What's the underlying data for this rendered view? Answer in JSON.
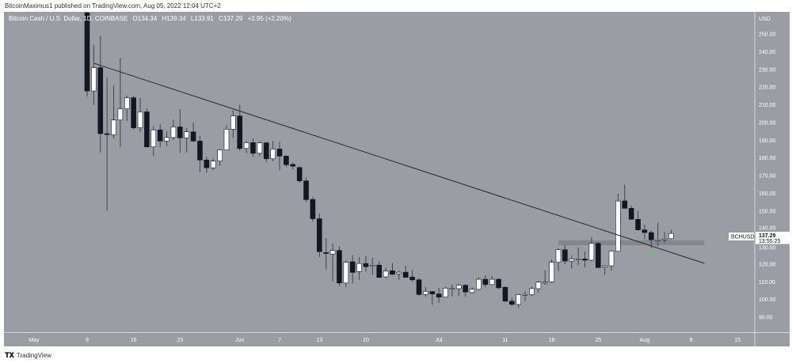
{
  "publish_line": "BitcoinMaximus1 published on TradingView.com, Aug 05, 2022 12:04 UTC+2",
  "brand": {
    "logo_text": "TV",
    "name": "TradingView"
  },
  "colors": {
    "background": "#9b9da4",
    "up": "#ffffff",
    "down": "#131722",
    "wick": "#444444",
    "trendline": "#2a2a2a",
    "zone": "#808288",
    "marker": "#3ddc3d",
    "axis_text": "#ffffff"
  },
  "chart_data": {
    "type": "candlestick",
    "legend": {
      "title": "Bitcoin Cash / U.S. Dollar, 1D, COINBASE",
      "open": "O134.34",
      "high": "H139.34",
      "low": "L133.91",
      "close": "C137.29",
      "change": "+2.95 (+2.20%)"
    },
    "y_axis": {
      "unit": "USD",
      "range": [
        85,
        256
      ],
      "ticks": [
        "250.00",
        "240.00",
        "230.00",
        "220.00",
        "210.00",
        "200.00",
        "190.00",
        "180.00",
        "170.00",
        "160.00",
        "150.00",
        "140.00",
        "130.00",
        "120.00",
        "110.00",
        "100.00",
        "90.00"
      ]
    },
    "x_axis": {
      "ticks": [
        {
          "label": "May",
          "date": "2022-05-01"
        },
        {
          "label": "9",
          "date": "2022-05-09"
        },
        {
          "label": "16",
          "date": "2022-05-16"
        },
        {
          "label": "23",
          "date": "2022-05-23"
        },
        {
          "label": "Jun",
          "date": "2022-06-01"
        },
        {
          "label": "7",
          "date": "2022-06-07"
        },
        {
          "label": "13",
          "date": "2022-06-13"
        },
        {
          "label": "20",
          "date": "2022-06-20"
        },
        {
          "label": "Jul",
          "date": "2022-07-01"
        },
        {
          "label": "11",
          "date": "2022-07-11"
        },
        {
          "label": "18",
          "date": "2022-07-18"
        },
        {
          "label": "25",
          "date": "2022-07-25"
        },
        {
          "label": "Aug",
          "date": "2022-08-01"
        },
        {
          "label": "8",
          "date": "2022-08-08"
        },
        {
          "label": "15",
          "date": "2022-08-15"
        }
      ]
    },
    "grid": false,
    "symbol_label": "BCHUSD",
    "last_price": "137.29",
    "countdown": "13:55:25",
    "candles_columns": [
      "date",
      "open",
      "high",
      "low",
      "close"
    ],
    "candles": [
      [
        "2022-05-09",
        262,
        265,
        214.8,
        217.8
      ],
      [
        "2022-05-10",
        217.8,
        244,
        210,
        231
      ],
      [
        "2022-05-11",
        231,
        249,
        183,
        193.7
      ],
      [
        "2022-05-12",
        193.7,
        225.6,
        150,
        193.5
      ],
      [
        "2022-05-13",
        193,
        221,
        191,
        201.4
      ],
      [
        "2022-05-14",
        201.4,
        236.6,
        186,
        207.7
      ],
      [
        "2022-05-15",
        207.7,
        215,
        201,
        214
      ],
      [
        "2022-05-16",
        214,
        215,
        196,
        197
      ],
      [
        "2022-05-17",
        197,
        214,
        194.6,
        206
      ],
      [
        "2022-05-18",
        206,
        208,
        186,
        186.2
      ],
      [
        "2022-05-19",
        186.2,
        198,
        180.9,
        195.8
      ],
      [
        "2022-05-20",
        195.8,
        199,
        186,
        189.5
      ],
      [
        "2022-05-21",
        189.5,
        195,
        186.5,
        191.5
      ],
      [
        "2022-05-22",
        191.5,
        201.6,
        190,
        197.5
      ],
      [
        "2022-05-23",
        197.5,
        207.5,
        183,
        191.3
      ],
      [
        "2022-05-24",
        191.3,
        197,
        183,
        194.7
      ],
      [
        "2022-05-25",
        194.7,
        200,
        189,
        189.5
      ],
      [
        "2022-05-26",
        189.5,
        192.5,
        172,
        178.8
      ],
      [
        "2022-05-27",
        178.8,
        180.7,
        171.6,
        174.4
      ],
      [
        "2022-05-28",
        174.4,
        180,
        172.9,
        178.2
      ],
      [
        "2022-05-29",
        178.2,
        185,
        175.4,
        184.5
      ],
      [
        "2022-05-30",
        184.5,
        198.7,
        184.5,
        196.2
      ],
      [
        "2022-05-31",
        196.2,
        207,
        191.3,
        203.7
      ],
      [
        "2022-06-01",
        203.7,
        210,
        184,
        185.3
      ],
      [
        "2022-06-02",
        185.3,
        189.6,
        182.6,
        188.6
      ],
      [
        "2022-06-03",
        188.6,
        191,
        180.6,
        182.6
      ],
      [
        "2022-06-04",
        182.6,
        189.4,
        181,
        188.5
      ],
      [
        "2022-06-05",
        188.5,
        189,
        177.6,
        179.5
      ],
      [
        "2022-06-06",
        179.5,
        189.6,
        178,
        185
      ],
      [
        "2022-06-07",
        185,
        189,
        173,
        181
      ],
      [
        "2022-06-08",
        181,
        181.5,
        174.9,
        176.1
      ],
      [
        "2022-06-09",
        176.3,
        177.5,
        173.5,
        175.3
      ],
      [
        "2022-06-10",
        174.6,
        175,
        166,
        167
      ],
      [
        "2022-06-11",
        167,
        169,
        155,
        156.4
      ],
      [
        "2022-06-12",
        156.5,
        158,
        144,
        145.6
      ],
      [
        "2022-06-13",
        145.6,
        148.5,
        124,
        127
      ],
      [
        "2022-06-14",
        126.5,
        134.7,
        117,
        126.2
      ],
      [
        "2022-06-15",
        125.6,
        131.6,
        110.2,
        127.7
      ],
      [
        "2022-06-16",
        127.7,
        130,
        107.5,
        109.3
      ],
      [
        "2022-06-17",
        109.3,
        122,
        107,
        121
      ],
      [
        "2022-06-18",
        121.3,
        125,
        109,
        115.3
      ],
      [
        "2022-06-19",
        115.8,
        124,
        111,
        120.3
      ],
      [
        "2022-06-20",
        120.3,
        124.5,
        115.7,
        118.5
      ],
      [
        "2022-06-21",
        118.8,
        123.5,
        114,
        119.3
      ],
      [
        "2022-06-22",
        119.4,
        121.5,
        112,
        112.5
      ],
      [
        "2022-06-23",
        112.8,
        118,
        112,
        116
      ],
      [
        "2022-06-24",
        116.2,
        120.5,
        113.8,
        114.2
      ],
      [
        "2022-06-25",
        114.5,
        116.2,
        111,
        115.4
      ],
      [
        "2022-06-26",
        115.4,
        119,
        112.2,
        112.5
      ],
      [
        "2022-06-27",
        112.6,
        116.7,
        110,
        111.1
      ],
      [
        "2022-06-28",
        111.1,
        112,
        102,
        102.8
      ],
      [
        "2022-06-29",
        102.8,
        107,
        101.5,
        104.6
      ],
      [
        "2022-06-30",
        104.5,
        104.6,
        97,
        103.1
      ],
      [
        "2022-07-01",
        103.1,
        106.5,
        98,
        101.3
      ],
      [
        "2022-07-02",
        101.3,
        107.2,
        101,
        106.4
      ],
      [
        "2022-07-03",
        106.4,
        108.3,
        101.7,
        106.4
      ],
      [
        "2022-07-04",
        106.1,
        108.7,
        102,
        108
      ],
      [
        "2022-07-05",
        108,
        108.7,
        101.5,
        104.2
      ],
      [
        "2022-07-06",
        103.9,
        106.9,
        103.1,
        105.8
      ],
      [
        "2022-07-07",
        105.7,
        112.6,
        105.4,
        111.4
      ],
      [
        "2022-07-08",
        111.4,
        113.6,
        106.9,
        108.4
      ],
      [
        "2022-07-09",
        108.4,
        113.2,
        108.1,
        111.4
      ],
      [
        "2022-07-10",
        111.4,
        111.8,
        105.7,
        106.6
      ],
      [
        "2022-07-11",
        106.9,
        107.2,
        98.7,
        99
      ],
      [
        "2022-07-12",
        99,
        100.9,
        96.4,
        97.2
      ],
      [
        "2022-07-13",
        97.2,
        103.1,
        95.2,
        102.7
      ],
      [
        "2022-07-14",
        102.7,
        104.6,
        99.2,
        102.9
      ],
      [
        "2022-07-15",
        102.7,
        107.2,
        101.9,
        106.1
      ],
      [
        "2022-07-16",
        106.1,
        110.5,
        103.9,
        109.8
      ],
      [
        "2022-07-17",
        109.8,
        116.5,
        108.3,
        109.8
      ],
      [
        "2022-07-18",
        110,
        122.5,
        109.6,
        121
      ],
      [
        "2022-07-19",
        121,
        128.8,
        116,
        128.1
      ],
      [
        "2022-07-20",
        128.1,
        130.9,
        119.9,
        121.7
      ],
      [
        "2022-07-21",
        121.7,
        124.8,
        117.4,
        122.9
      ],
      [
        "2022-07-22",
        122.9,
        129.4,
        119.5,
        122.9
      ],
      [
        "2022-07-23",
        122.9,
        127,
        118,
        122.2
      ],
      [
        "2022-07-24",
        122.2,
        135.2,
        121.7,
        131.7
      ],
      [
        "2022-07-25",
        131.7,
        132.5,
        118,
        118
      ],
      [
        "2022-07-26",
        118.2,
        119.4,
        113.8,
        119
      ],
      [
        "2022-07-27",
        119,
        128,
        116.5,
        127.4
      ],
      [
        "2022-07-28",
        127.2,
        159.7,
        126.9,
        155.6
      ],
      [
        "2022-07-29",
        155.7,
        165,
        151.5,
        151.5
      ],
      [
        "2022-07-30",
        151.5,
        153,
        145,
        145.3
      ],
      [
        "2022-07-31",
        145.3,
        150.1,
        139,
        139.3
      ],
      [
        "2022-08-01",
        139.3,
        142.3,
        133.9,
        137.8
      ],
      [
        "2022-08-02",
        137.8,
        139,
        128.9,
        133.7
      ],
      [
        "2022-08-03",
        133.7,
        143.3,
        130,
        133.7
      ],
      [
        "2022-08-04",
        134.2,
        138.2,
        132.2,
        134.2
      ],
      [
        "2022-08-05",
        134.34,
        139.34,
        133.91,
        137.29
      ]
    ],
    "trendline": {
      "from": [
        "2022-05-10",
        233.5
      ],
      "to": [
        "2022-08-10",
        120.4
      ]
    },
    "zone": {
      "from": "2022-07-19",
      "to": "2022-08-10",
      "low": 130.6,
      "high": 133.4
    },
    "marker": {
      "date": "2022-08-02",
      "price": 126.5,
      "shape": "arrow-up"
    }
  }
}
